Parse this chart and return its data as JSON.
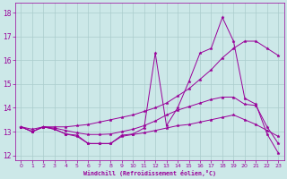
{
  "xlabel": "Windchill (Refroidissement éolien,°C)",
  "bg_color": "#cce8e8",
  "line_color": "#990099",
  "grid_color": "#aacccc",
  "xlim": [
    -0.5,
    23.5
  ],
  "ylim": [
    11.8,
    18.4
  ],
  "yticks": [
    12,
    13,
    14,
    15,
    16,
    17,
    18
  ],
  "xticks": [
    0,
    1,
    2,
    3,
    4,
    5,
    6,
    7,
    8,
    9,
    10,
    11,
    12,
    13,
    14,
    15,
    16,
    17,
    18,
    19,
    20,
    21,
    22,
    23
  ],
  "series": [
    {
      "x": [
        0,
        1,
        2,
        3,
        4,
        5,
        6,
        7,
        8,
        9,
        10,
        11,
        12,
        13,
        14,
        15,
        16,
        17,
        18,
        19,
        20,
        21,
        22,
        23
      ],
      "y": [
        13.2,
        13.0,
        13.2,
        13.1,
        12.9,
        12.85,
        12.5,
        12.5,
        12.5,
        12.85,
        12.9,
        13.15,
        16.3,
        13.25,
        14.0,
        15.1,
        16.3,
        16.5,
        17.8,
        16.8,
        14.4,
        14.15,
        12.9,
        12.1
      ]
    },
    {
      "x": [
        0,
        1,
        2,
        3,
        4,
        5,
        6,
        7,
        8,
        9,
        10,
        11,
        12,
        13,
        14,
        15,
        16,
        17,
        18,
        19,
        20,
        21,
        22,
        23
      ],
      "y": [
        13.2,
        13.1,
        13.2,
        13.2,
        13.2,
        13.25,
        13.3,
        13.4,
        13.5,
        13.6,
        13.7,
        13.85,
        14.0,
        14.2,
        14.5,
        14.8,
        15.2,
        15.6,
        16.1,
        16.5,
        16.8,
        16.8,
        16.5,
        16.2
      ]
    },
    {
      "x": [
        0,
        1,
        2,
        3,
        4,
        5,
        6,
        7,
        8,
        9,
        10,
        11,
        12,
        13,
        14,
        15,
        16,
        17,
        18,
        19,
        20,
        21,
        22,
        23
      ],
      "y": [
        13.2,
        13.0,
        13.2,
        13.15,
        13.05,
        12.95,
        12.88,
        12.88,
        12.9,
        13.0,
        13.1,
        13.25,
        13.45,
        13.7,
        13.9,
        14.05,
        14.2,
        14.35,
        14.45,
        14.45,
        14.15,
        14.1,
        13.2,
        12.5
      ]
    },
    {
      "x": [
        0,
        1,
        2,
        3,
        4,
        5,
        6,
        7,
        8,
        9,
        10,
        11,
        12,
        13,
        14,
        15,
        16,
        17,
        18,
        19,
        20,
        21,
        22,
        23
      ],
      "y": [
        13.2,
        13.0,
        13.2,
        13.1,
        12.9,
        12.8,
        12.5,
        12.5,
        12.5,
        12.8,
        12.88,
        12.95,
        13.05,
        13.15,
        13.25,
        13.3,
        13.4,
        13.5,
        13.6,
        13.7,
        13.5,
        13.3,
        13.05,
        12.8
      ]
    }
  ]
}
